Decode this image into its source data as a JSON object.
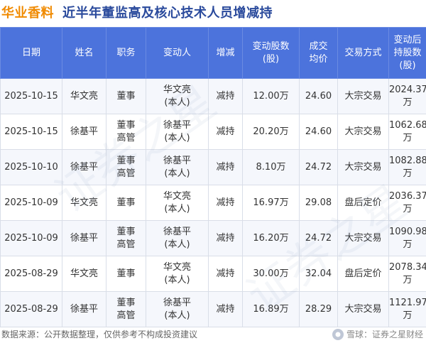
{
  "header": {
    "company": "华业香料",
    "title": "近半年董监高及核心技术人员增减持"
  },
  "table": {
    "columns": [
      "日期",
      "姓名",
      "职务",
      "变动人",
      "增减",
      "变动股数\n(股)",
      "成交\n均价",
      "交易方式",
      "变动后\n持股数\n(股)"
    ],
    "rows": [
      {
        "date": "2025-10-15",
        "name": "华文亮",
        "role": "董事",
        "changer": "华文亮\n(本人)",
        "direction": "减持",
        "shares": "12.00万",
        "price": "24.60",
        "method": "大宗交易",
        "after": "2024.37万"
      },
      {
        "date": "2025-10-15",
        "name": "徐基平",
        "role": "董事\n高管",
        "changer": "徐基平\n(本人)",
        "direction": "减持",
        "shares": "20.20万",
        "price": "24.60",
        "method": "大宗交易",
        "after": "1062.68万"
      },
      {
        "date": "2025-10-10",
        "name": "徐基平",
        "role": "董事\n高管",
        "changer": "徐基平\n(本人)",
        "direction": "减持",
        "shares": "8.10万",
        "price": "24.72",
        "method": "大宗交易",
        "after": "1082.88万"
      },
      {
        "date": "2025-10-09",
        "name": "华文亮",
        "role": "董事",
        "changer": "华文亮\n(本人)",
        "direction": "减持",
        "shares": "16.97万",
        "price": "29.08",
        "method": "盘后定价",
        "after": "2036.37万"
      },
      {
        "date": "2025-10-09",
        "name": "徐基平",
        "role": "董事\n高管",
        "changer": "徐基平\n(本人)",
        "direction": "减持",
        "shares": "16.20万",
        "price": "24.72",
        "method": "大宗交易",
        "after": "1090.98万"
      },
      {
        "date": "2025-08-29",
        "name": "华文亮",
        "role": "董事",
        "changer": "华文亮\n(本人)",
        "direction": "减持",
        "shares": "30.00万",
        "price": "32.04",
        "method": "盘后定价",
        "after": "2078.34万"
      },
      {
        "date": "2025-08-29",
        "name": "徐基平",
        "role": "董事\n高管",
        "changer": "徐基平\n(本人)",
        "direction": "减持",
        "shares": "16.89万",
        "price": "28.29",
        "method": "大宗交易",
        "after": "1121.97万"
      }
    ]
  },
  "footer": {
    "source": "数据来源：公开数据整理，仅供参考不构成投资建议",
    "brand": "雪球：证券之星财经"
  },
  "watermark": {
    "text": "证券之星"
  },
  "colors": {
    "header_bg": "#4c73dc",
    "company": "#f08a00",
    "title": "#2a4a9c",
    "decrease": "#1f9a3c"
  }
}
